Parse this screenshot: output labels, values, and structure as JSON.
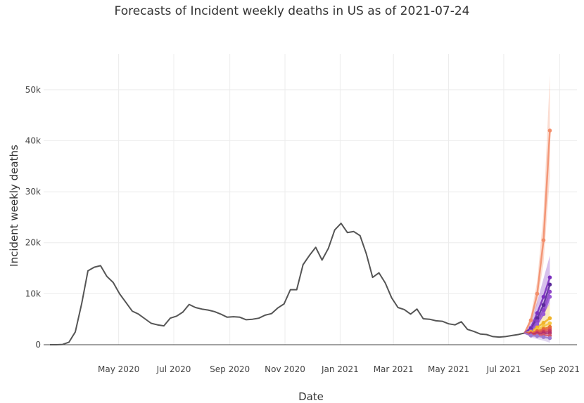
{
  "chart_data": {
    "type": "line",
    "title": "Forecasts of Incident weekly deaths in US as of 2021-07-24",
    "xlabel": "Date",
    "ylabel": "Incident weekly deaths",
    "x_range": [
      "2020-02-08",
      "2021-09-20"
    ],
    "ylim": [
      0,
      57000
    ],
    "grid": true,
    "legend": "none",
    "x_ticks": [
      {
        "date": "2020-05-01",
        "label": "May 2020"
      },
      {
        "date": "2020-07-01",
        "label": "Jul 2020"
      },
      {
        "date": "2020-09-01",
        "label": "Sep 2020"
      },
      {
        "date": "2020-11-01",
        "label": "Nov 2020"
      },
      {
        "date": "2021-01-01",
        "label": "Jan 2021"
      },
      {
        "date": "2021-03-01",
        "label": "Mar 2021"
      },
      {
        "date": "2021-05-01",
        "label": "May 2021"
      },
      {
        "date": "2021-07-01",
        "label": "Jul 2021"
      },
      {
        "date": "2021-09-01",
        "label": "Sep 2021"
      }
    ],
    "y_ticks": [
      {
        "value": 0,
        "label": "0"
      },
      {
        "value": 10000,
        "label": "10k"
      },
      {
        "value": 20000,
        "label": "20k"
      },
      {
        "value": 30000,
        "label": "30k"
      },
      {
        "value": 40000,
        "label": "40k"
      },
      {
        "value": 50000,
        "label": "50k"
      }
    ],
    "observed": {
      "color": "#555555",
      "x": [
        "2020-02-15",
        "2020-02-22",
        "2020-02-29",
        "2020-03-07",
        "2020-03-14",
        "2020-03-21",
        "2020-03-28",
        "2020-04-04",
        "2020-04-11",
        "2020-04-18",
        "2020-04-25",
        "2020-05-02",
        "2020-05-09",
        "2020-05-16",
        "2020-05-23",
        "2020-05-30",
        "2020-06-06",
        "2020-06-13",
        "2020-06-20",
        "2020-06-27",
        "2020-07-04",
        "2020-07-11",
        "2020-07-18",
        "2020-07-25",
        "2020-08-01",
        "2020-08-08",
        "2020-08-15",
        "2020-08-22",
        "2020-08-29",
        "2020-09-05",
        "2020-09-12",
        "2020-09-19",
        "2020-09-26",
        "2020-10-03",
        "2020-10-10",
        "2020-10-17",
        "2020-10-24",
        "2020-10-31",
        "2020-11-07",
        "2020-11-14",
        "2020-11-21",
        "2020-11-28",
        "2020-12-05",
        "2020-12-12",
        "2020-12-19",
        "2020-12-26",
        "2021-01-02",
        "2021-01-09",
        "2021-01-16",
        "2021-01-23",
        "2021-01-30",
        "2021-02-06",
        "2021-02-13",
        "2021-02-20",
        "2021-02-27",
        "2021-03-06",
        "2021-03-13",
        "2021-03-20",
        "2021-03-27",
        "2021-04-03",
        "2021-04-10",
        "2021-04-17",
        "2021-04-24",
        "2021-05-01",
        "2021-05-08",
        "2021-05-15",
        "2021-05-22",
        "2021-05-29",
        "2021-06-05",
        "2021-06-12",
        "2021-06-19",
        "2021-06-26",
        "2021-07-03",
        "2021-07-10",
        "2021-07-17",
        "2021-07-24"
      ],
      "y": [
        0,
        0,
        50,
        500,
        2500,
        8000,
        14500,
        15200,
        15500,
        13400,
        12200,
        10000,
        8300,
        6600,
        6000,
        5100,
        4200,
        3900,
        3700,
        5200,
        5600,
        6400,
        7900,
        7300,
        7000,
        6800,
        6500,
        6000,
        5400,
        5500,
        5400,
        4900,
        5000,
        5200,
        5800,
        6100,
        7200,
        8000,
        10800,
        10800,
        15700,
        17500,
        19100,
        16600,
        18900,
        22500,
        23800,
        22000,
        22200,
        21400,
        17800,
        13200,
        14100,
        12100,
        9200,
        7300,
        6900,
        6000,
        7000,
        5100,
        5000,
        4700,
        4600,
        4100,
        3900,
        4500,
        3000,
        2600,
        2100,
        2000,
        1600,
        1500,
        1600,
        1800,
        2000,
        2300
      ]
    },
    "forecasts": {
      "x": [
        "2021-07-31",
        "2021-08-07",
        "2021-08-14",
        "2021-08-21"
      ],
      "series": [
        {
          "color": "#f28e6b",
          "values": [
            4800,
            10000,
            20500,
            42000
          ],
          "lower": [
            4000,
            8000,
            16000,
            33000
          ],
          "upper": [
            5800,
            12500,
            26000,
            53000
          ]
        },
        {
          "color": "#7b2fbf",
          "values": [
            3300,
            6200,
            9400,
            13200
          ],
          "lower": [
            2600,
            4500,
            6000,
            8000
          ],
          "upper": [
            4200,
            8500,
            13000,
            17500
          ]
        },
        {
          "color": "#5b2a9a",
          "values": [
            3000,
            5200,
            7800,
            11800
          ]
        },
        {
          "color": "#8e44c9",
          "values": [
            2800,
            4600,
            6800,
            10400
          ]
        },
        {
          "color": "#9a5ad6",
          "values": [
            2600,
            4000,
            6000,
            9400
          ]
        },
        {
          "color": "#f0b429",
          "values": [
            2500,
            3400,
            4300,
            5200
          ],
          "lower": [
            1800,
            2200,
            2600,
            3000
          ],
          "upper": [
            3500,
            5000,
            6500,
            8000
          ]
        },
        {
          "color": "#f5c542",
          "values": [
            2400,
            3000,
            3600,
            4200
          ]
        },
        {
          "color": "#e6732e",
          "values": [
            2300,
            2700,
            3100,
            3500
          ]
        },
        {
          "color": "#e05a4f",
          "values": [
            2200,
            2500,
            2800,
            3100
          ]
        },
        {
          "color": "#c93a5e",
          "values": [
            2100,
            2300,
            2500,
            2700
          ]
        },
        {
          "color": "#b3306e",
          "values": [
            2000,
            2100,
            2200,
            2300
          ]
        },
        {
          "color": "#d2556a",
          "values": [
            1900,
            1900,
            1900,
            1800
          ]
        },
        {
          "color": "#9c7bd1",
          "values": [
            1800,
            1700,
            1500,
            1300
          ],
          "lower": [
            1400,
            1100,
            800,
            400
          ],
          "upper": [
            2300,
            2400,
            2500,
            2600
          ]
        }
      ]
    }
  }
}
